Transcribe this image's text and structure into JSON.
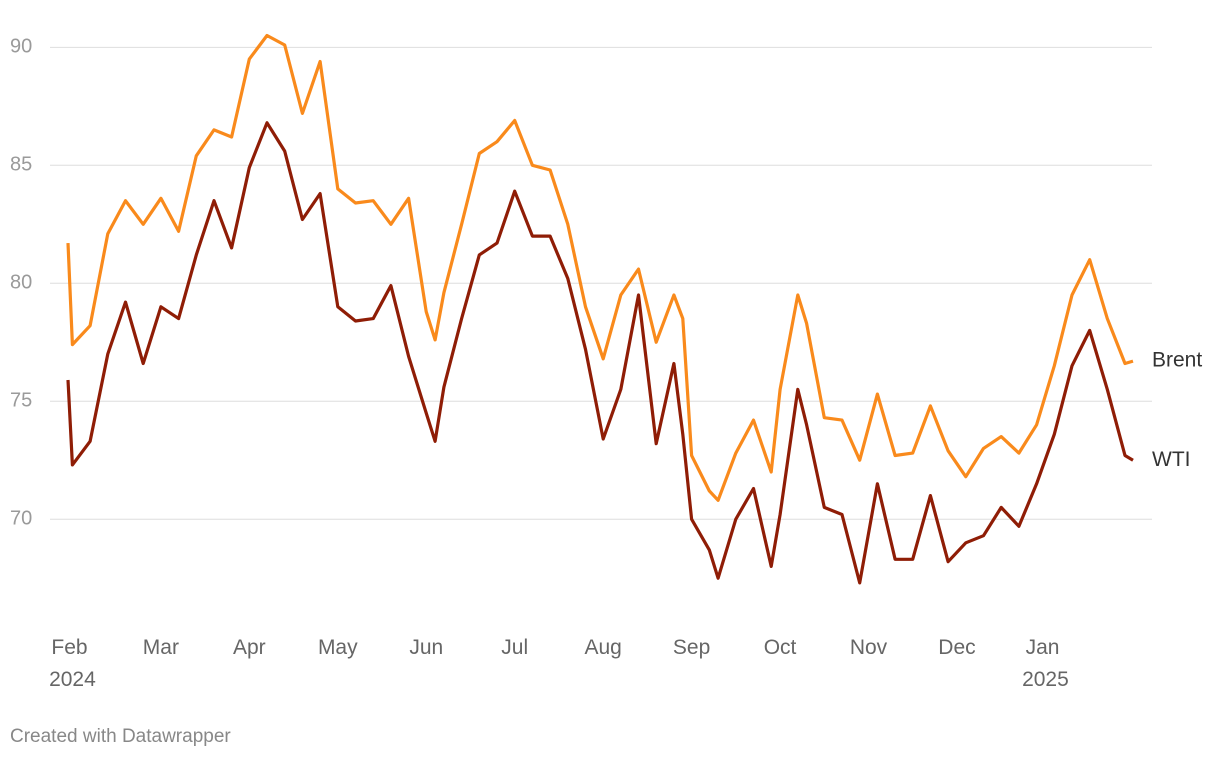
{
  "chart_data": {
    "type": "line",
    "x": [
      -0.05,
      0,
      0.2,
      0.4,
      0.6,
      0.8,
      1.0,
      1.2,
      1.4,
      1.6,
      1.8,
      2.0,
      2.2,
      2.4,
      2.6,
      2.8,
      3.0,
      3.2,
      3.4,
      3.6,
      3.8,
      4.0,
      4.1,
      4.2,
      4.4,
      4.6,
      4.8,
      5.0,
      5.2,
      5.4,
      5.6,
      5.8,
      6.0,
      6.2,
      6.4,
      6.6,
      6.8,
      6.9,
      7.0,
      7.2,
      7.3,
      7.5,
      7.7,
      7.9,
      8.0,
      8.2,
      8.3,
      8.5,
      8.7,
      8.9,
      9.1,
      9.3,
      9.5,
      9.7,
      9.9,
      10.1,
      10.3,
      10.5,
      10.7,
      10.9,
      11.1,
      11.3,
      11.5,
      11.7,
      11.9,
      11.99
    ],
    "series": [
      {
        "name": "Brent",
        "color": "#f98a1c",
        "values": [
          81.7,
          77.4,
          78.2,
          82.1,
          83.5,
          82.5,
          83.6,
          82.2,
          85.4,
          86.5,
          86.2,
          89.5,
          90.5,
          90.1,
          87.2,
          89.4,
          84.0,
          83.4,
          83.5,
          82.5,
          83.6,
          78.8,
          77.6,
          79.6,
          82.5,
          85.5,
          86.0,
          86.9,
          85.0,
          84.8,
          82.5,
          79.0,
          76.8,
          79.5,
          80.6,
          77.5,
          79.5,
          78.5,
          72.7,
          71.2,
          70.8,
          72.8,
          74.2,
          72.0,
          75.5,
          79.5,
          78.3,
          74.3,
          74.2,
          72.5,
          75.3,
          72.7,
          72.8,
          74.8,
          72.9,
          71.8,
          73.0,
          73.5,
          72.8,
          74.0,
          76.5,
          79.5,
          81.0,
          78.5,
          76.6,
          76.7
        ]
      },
      {
        "name": "WTI",
        "color": "#8f1d06",
        "values": [
          75.9,
          72.3,
          73.3,
          77.0,
          79.2,
          76.6,
          79.0,
          78.5,
          81.2,
          83.5,
          81.5,
          84.9,
          86.8,
          85.6,
          82.7,
          83.8,
          79.0,
          78.4,
          78.5,
          79.9,
          76.9,
          74.5,
          73.3,
          75.6,
          78.5,
          81.2,
          81.7,
          83.9,
          82.0,
          82.0,
          80.2,
          77.2,
          73.4,
          75.5,
          79.5,
          73.2,
          76.6,
          73.6,
          70.0,
          68.7,
          67.5,
          70.0,
          71.3,
          68.0,
          70.2,
          75.5,
          74.0,
          70.5,
          70.2,
          67.3,
          71.5,
          68.3,
          68.3,
          71.0,
          68.2,
          69.0,
          69.3,
          70.5,
          69.7,
          71.5,
          73.6,
          76.5,
          78.0,
          75.5,
          72.7,
          72.5
        ]
      }
    ],
    "xlim": [
      -0.05,
      11.99
    ],
    "xticks": [
      {
        "value": 0,
        "label": "Feb 2024"
      },
      {
        "value": 1,
        "label": "Mar"
      },
      {
        "value": 2,
        "label": "Apr"
      },
      {
        "value": 3,
        "label": "May"
      },
      {
        "value": 4,
        "label": "Jun"
      },
      {
        "value": 5,
        "label": "Jul"
      },
      {
        "value": 6,
        "label": "Aug"
      },
      {
        "value": 7,
        "label": "Sep"
      },
      {
        "value": 8,
        "label": "Oct"
      },
      {
        "value": 9,
        "label": "Nov"
      },
      {
        "value": 10,
        "label": "Dec"
      },
      {
        "value": 11,
        "label": "Jan 2025"
      }
    ],
    "ylim": [
      65.6,
      91.2
    ],
    "yticks": [
      70,
      75,
      80,
      85,
      90
    ],
    "grid": true,
    "source": "Created with Datawrapper"
  }
}
